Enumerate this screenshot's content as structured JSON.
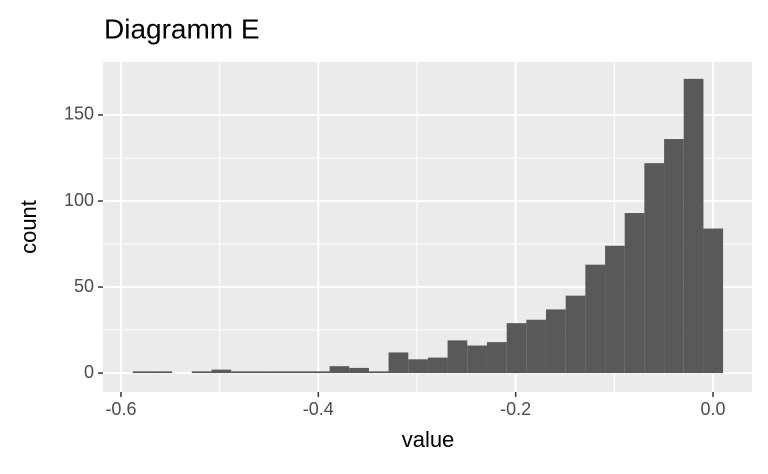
{
  "chart_data": {
    "type": "histogram",
    "title": "Diagramm E",
    "x_label": "value",
    "y_label": "count",
    "bins": [
      -0.588,
      -0.5681,
      -0.5481,
      -0.5282,
      -0.5082,
      -0.4883,
      -0.4684,
      -0.4484,
      -0.4285,
      -0.4085,
      -0.3886,
      -0.3687,
      -0.3487,
      -0.3288,
      -0.3088,
      -0.2889,
      -0.269,
      -0.249,
      -0.2291,
      -0.2091,
      -0.1892,
      -0.1693,
      -0.1493,
      -0.1294,
      -0.1094,
      -0.0895,
      -0.0696,
      -0.0496,
      -0.0297,
      -0.0097,
      0.0102
    ],
    "values": [
      1,
      1,
      0,
      1,
      2,
      1,
      1,
      1,
      1,
      1,
      4,
      3,
      1,
      12,
      8,
      9,
      19,
      16,
      18,
      29,
      31,
      37,
      45,
      63,
      74,
      93,
      122,
      136,
      171,
      84
    ],
    "color": "#595959",
    "panel_color": "#ebebeb",
    "grid": true,
    "xlim": [
      -0.6182,
      0.0395
    ],
    "xticks": [
      -0.6,
      -0.4,
      -0.2,
      {
        "value": 0,
        "label": "0.0"
      }
    ],
    "x_minor_grid": [
      -0.5,
      -0.3,
      -0.1
    ],
    "ylim": [
      -11,
      180.8
    ],
    "yticks": [
      0,
      50,
      100,
      150
    ],
    "y_minor_grid": [
      25,
      75,
      125
    ]
  }
}
